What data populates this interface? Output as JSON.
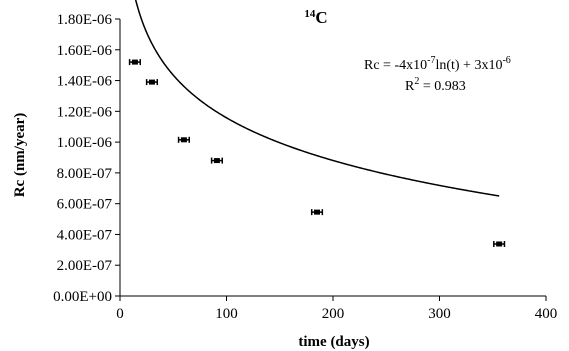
{
  "chart_data": {
    "type": "scatter",
    "title_main": "C",
    "title_superscript": "14",
    "xlabel": "time (days)",
    "ylabel": "Rc (nm/year)",
    "xlim": [
      0,
      400
    ],
    "ylim": [
      0,
      1.8e-06
    ],
    "x_ticks": [
      0,
      100,
      200,
      300,
      400
    ],
    "x_tick_labels": [
      "0",
      "100",
      "200",
      "300",
      "400"
    ],
    "y_ticks": [
      0,
      2e-07,
      4e-07,
      6e-07,
      8e-07,
      1e-06,
      1.2e-06,
      1.4e-06,
      1.6e-06,
      1.8e-06
    ],
    "y_tick_labels": [
      "0.00E+00",
      "2.00E-07",
      "4.00E-07",
      "6.00E-07",
      "8.00E-07",
      "1.00E-06",
      "1.20E-06",
      "1.40E-06",
      "1.60E-06",
      "1.80E-06"
    ],
    "grid": false,
    "series": [
      {
        "points": [
          {
            "x": 14,
            "y": 1.52e-06,
            "xerr": 5
          },
          {
            "x": 30,
            "y": 1.39e-06,
            "xerr": 5
          },
          {
            "x": 60,
            "y": 1.015e-06,
            "xerr": 5
          },
          {
            "x": 91,
            "y": 8.8e-07,
            "xerr": 5
          },
          {
            "x": 185,
            "y": 5.45e-07,
            "xerr": 5
          },
          {
            "x": 356,
            "y": 3.38e-07,
            "xerr": 5
          }
        ]
      }
    ],
    "fit": {
      "type": "logarithmic",
      "a": -4e-07,
      "b": 3e-06,
      "x_range": [
        13,
        356
      ],
      "equation_parts": {
        "lead": "Rc = -4x10",
        "exp1": "-7",
        "mid": "ln(t) + 3x10",
        "exp2": "-6"
      },
      "r2_parts": {
        "lead": "R",
        "exp": "2",
        "tail": " = 0.983"
      }
    }
  }
}
